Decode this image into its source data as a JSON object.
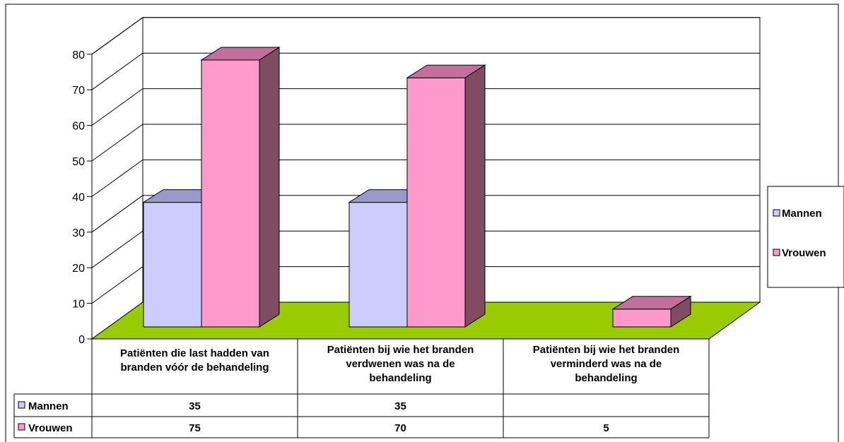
{
  "chart_data": {
    "type": "bar",
    "variant": "3d-clustered-column",
    "categories": [
      [
        "Patiënten die last hadden van",
        "branden vóór de behandeling"
      ],
      [
        "Patiënten bij wie het branden",
        "verdwenen was na de",
        "behandeling"
      ],
      [
        "Patiënten bij wie het branden",
        "verminderd was na de",
        "behandeling"
      ]
    ],
    "series": [
      {
        "name": "Mannen",
        "values": [
          35,
          35,
          null
        ],
        "color": "#CCCCFF",
        "top_color": "#9999CC",
        "side_color": "#7F7FAA",
        "table_values": [
          "35",
          "35",
          ""
        ]
      },
      {
        "name": "Vrouwen",
        "values": [
          75,
          70,
          5
        ],
        "color": "#FF99CC",
        "top_color": "#C0709A",
        "side_color": "#7F4C62",
        "table_values": [
          "75",
          "70",
          "5"
        ]
      }
    ],
    "ylim": [
      0,
      80
    ],
    "yticks": [
      0,
      10,
      20,
      30,
      40,
      50,
      60,
      70,
      80
    ],
    "grid": true,
    "floor_color": "#99CC00",
    "legend_position": "right",
    "data_table": true
  }
}
